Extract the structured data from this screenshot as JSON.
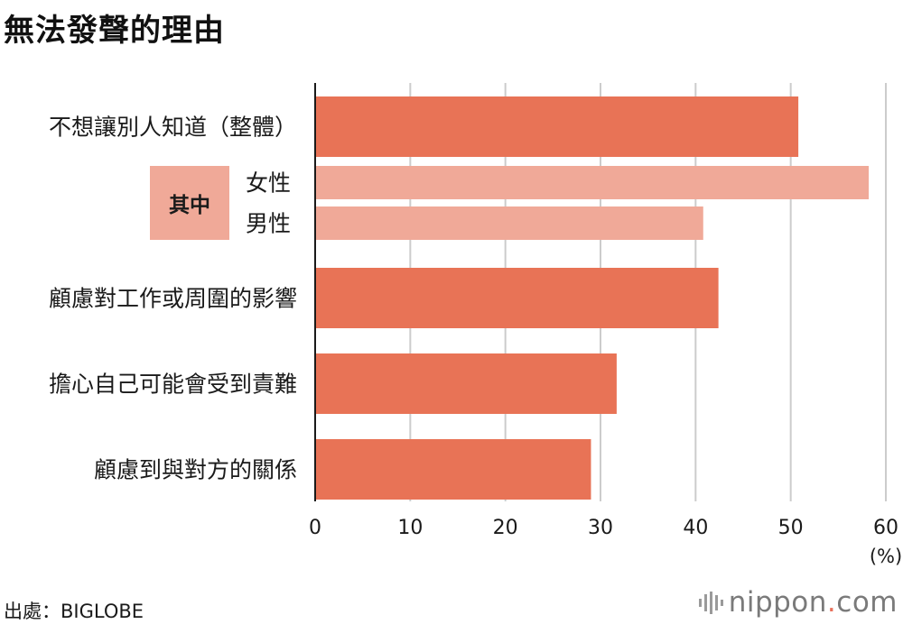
{
  "title": "無法發聲的理由",
  "source": "出處：BIGLOBE",
  "brand": {
    "name": "nippon",
    "dot": ".",
    "suffix": "com",
    "dot_color": "#e8705a"
  },
  "colors": {
    "main": "#e87356",
    "sub": "#f0a998",
    "grid": "#cccccc",
    "axis": "#1a1a1a"
  },
  "group_label": "其中",
  "chart_data": {
    "type": "bar",
    "orientation": "horizontal",
    "title": "無法發聲的理由",
    "unit": "(%)",
    "xlim": [
      0,
      60
    ],
    "x_ticks": [
      "0",
      "10",
      "20",
      "30",
      "40",
      "50",
      "60"
    ],
    "grid": true,
    "bars": [
      {
        "label": "不想讓別人知道（整體）",
        "value": 50.8,
        "kind": "main"
      },
      {
        "label": "女性",
        "value": 58.2,
        "kind": "sub"
      },
      {
        "label": "男性",
        "value": 40.8,
        "kind": "sub"
      },
      {
        "label": "顧慮對工作或周圍的影響",
        "value": 42.4,
        "kind": "main"
      },
      {
        "label": "擔心自己可能會受到責難",
        "value": 31.7,
        "kind": "main"
      },
      {
        "label": "顧慮到與對方的關係",
        "value": 29.0,
        "kind": "main"
      }
    ]
  }
}
